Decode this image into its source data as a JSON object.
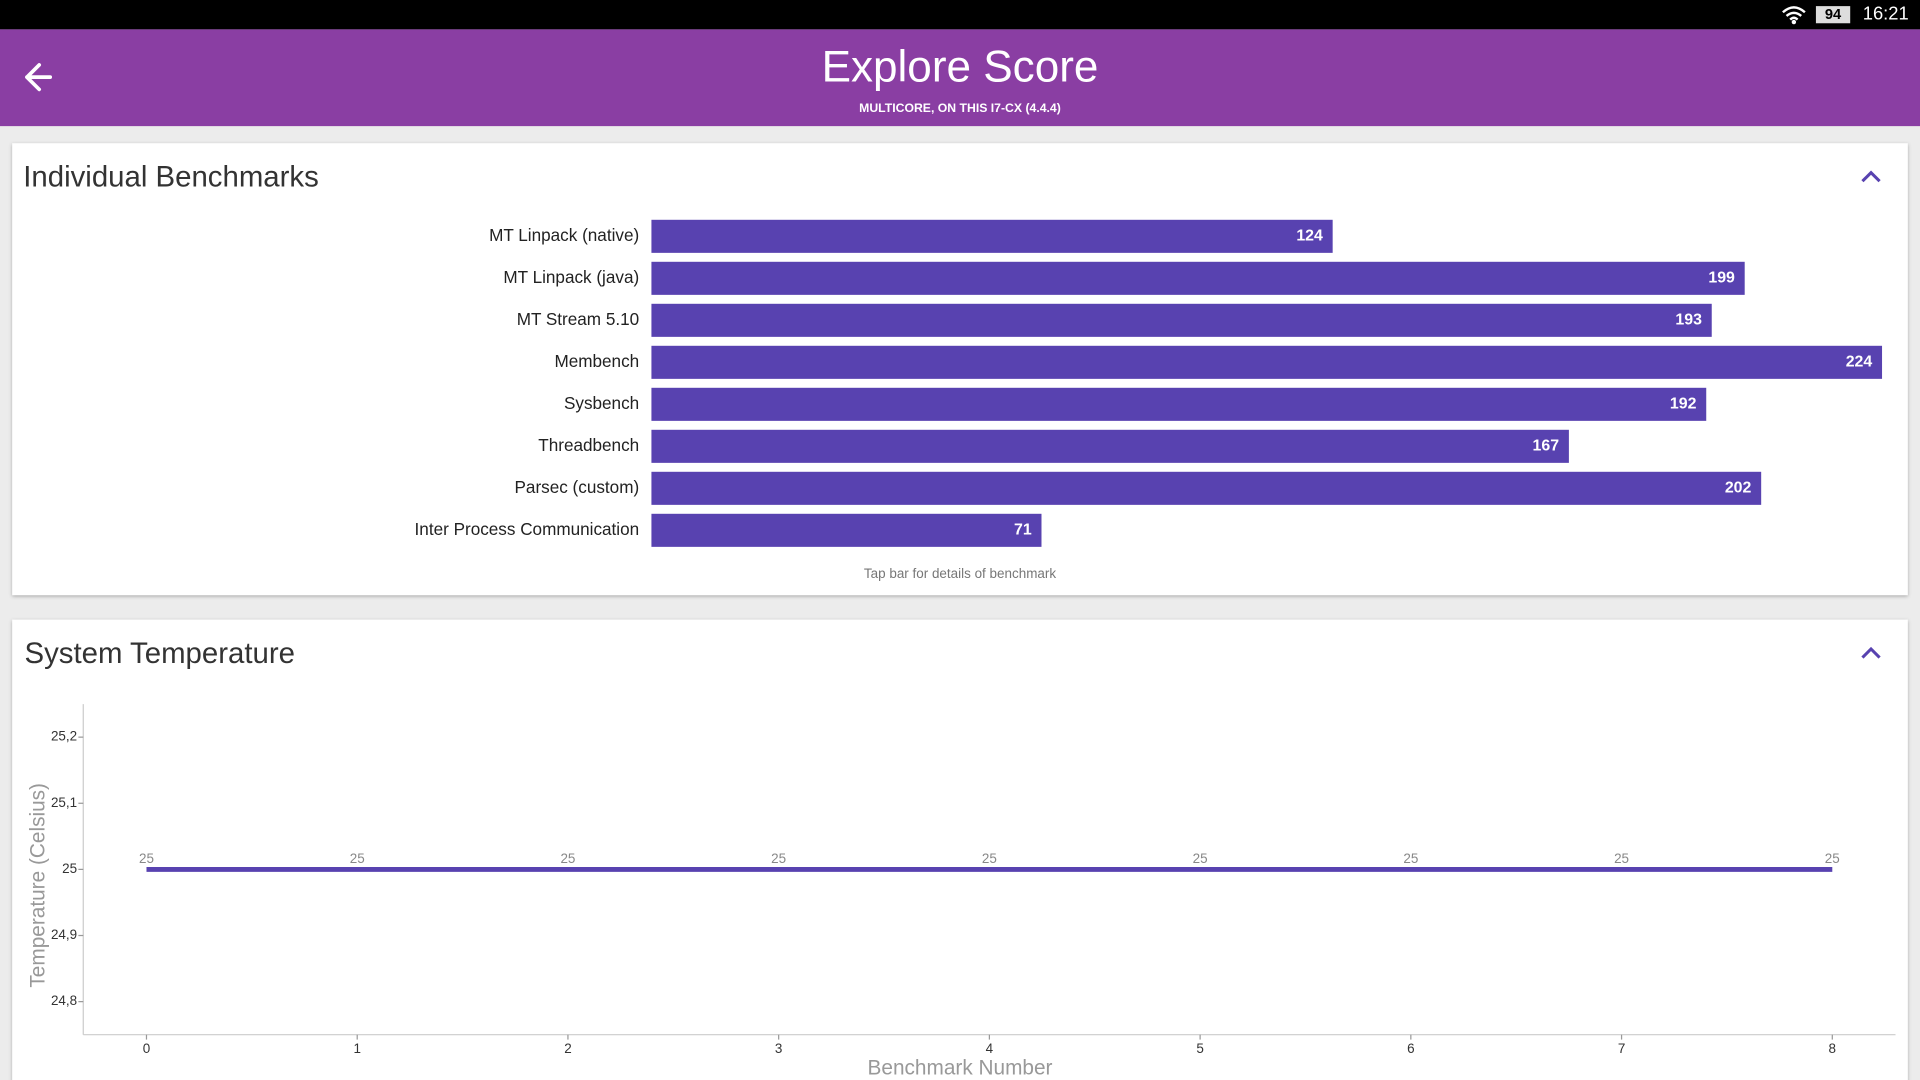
{
  "status_bar": {
    "battery": "94",
    "time": "16:21"
  },
  "header": {
    "title": "Explore Score",
    "subtitle": "MULTICORE, ON THIS I7-CX (4.4.4)"
  },
  "chart_data": [
    {
      "type": "bar",
      "orientation": "horizontal",
      "title": "Individual Benchmarks",
      "categories": [
        "MT Linpack (native)",
        "MT Linpack (java)",
        "MT Stream 5.10",
        "Membench",
        "Sysbench",
        "Threadbench",
        "Parsec (custom)",
        "Inter Process Communication"
      ],
      "values": [
        124,
        199,
        193,
        224,
        192,
        167,
        202,
        71
      ],
      "color": "#5842b0",
      "caption": "Tap bar for details of benchmark"
    },
    {
      "type": "line",
      "title": "System Temperature",
      "x": [
        0,
        1,
        2,
        3,
        4,
        5,
        6,
        7,
        8
      ],
      "values": [
        25,
        25,
        25,
        25,
        25,
        25,
        25,
        25,
        25
      ],
      "color": "#5842b0",
      "xlim": [
        -0.3,
        8.3
      ],
      "xticks": [
        0,
        1,
        2,
        3,
        4,
        5,
        6,
        7,
        8
      ],
      "ylim": [
        24.75,
        25.25
      ],
      "yticks": [
        {
          "value": 24.8,
          "label": "24,8"
        },
        {
          "value": 24.9,
          "label": "24,9"
        },
        25,
        {
          "value": 25.1,
          "label": "25,1"
        },
        {
          "value": 25.2,
          "label": "25,2"
        }
      ],
      "x_label": "Benchmark Number",
      "y_label": "Temperature (Celsius)"
    }
  ]
}
